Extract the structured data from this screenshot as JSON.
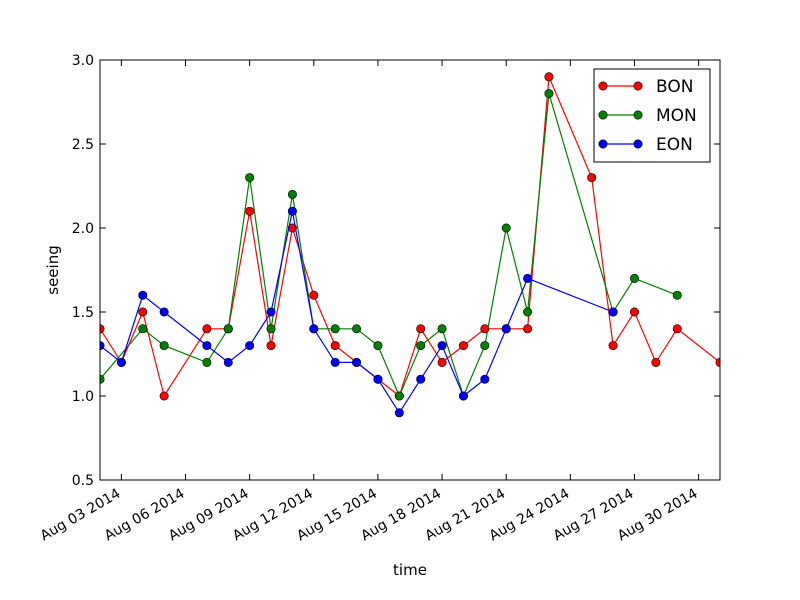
{
  "chart_data": {
    "type": "line",
    "xlabel": "time",
    "ylabel": "seeing",
    "xlim": [
      "2014-08-02",
      "2014-08-31"
    ],
    "ylim": [
      0.5,
      3.0
    ],
    "yticks": [
      0.5,
      1.0,
      1.5,
      2.0,
      2.5,
      3.0
    ],
    "ytick_labels": [
      "0.5",
      "1.0",
      "1.5",
      "2.0",
      "2.5",
      "3.0"
    ],
    "xticks": [
      "2014-08-03",
      "2014-08-06",
      "2014-08-09",
      "2014-08-12",
      "2014-08-15",
      "2014-08-18",
      "2014-08-21",
      "2014-08-24",
      "2014-08-27",
      "2014-08-30"
    ],
    "xtick_labels": [
      "Aug 03 2014",
      "Aug 06 2014",
      "Aug 09 2014",
      "Aug 12 2014",
      "Aug 15 2014",
      "Aug 18 2014",
      "Aug 21 2014",
      "Aug 24 2014",
      "Aug 27 2014",
      "Aug 30 2014"
    ],
    "grid": false,
    "legend_position": "top-right",
    "series": [
      {
        "name": "BON",
        "color": "#ff0000",
        "x": [
          "2014-08-02",
          "2014-08-03",
          "2014-08-04",
          "2014-08-05",
          "2014-08-07",
          "2014-08-08",
          "2014-08-09",
          "2014-08-10",
          "2014-08-11",
          "2014-08-12",
          "2014-08-13",
          "2014-08-14",
          "2014-08-15",
          "2014-08-16",
          "2014-08-17",
          "2014-08-18",
          "2014-08-19",
          "2014-08-20",
          "2014-08-21",
          "2014-08-22",
          "2014-08-23",
          "2014-08-25",
          "2014-08-26",
          "2014-08-27",
          "2014-08-28",
          "2014-08-29",
          "2014-08-31"
        ],
        "y": [
          1.4,
          1.2,
          1.5,
          1.0,
          1.4,
          1.4,
          2.1,
          1.3,
          2.0,
          1.6,
          1.3,
          1.2,
          1.1,
          1.0,
          1.4,
          1.2,
          1.3,
          1.4,
          1.4,
          1.4,
          2.9,
          2.3,
          1.3,
          1.5,
          1.2,
          1.4,
          1.2
        ]
      },
      {
        "name": "MON",
        "color": "#008000",
        "x": [
          "2014-08-02",
          "2014-08-04",
          "2014-08-05",
          "2014-08-07",
          "2014-08-08",
          "2014-08-09",
          "2014-08-10",
          "2014-08-11",
          "2014-08-12",
          "2014-08-13",
          "2014-08-14",
          "2014-08-15",
          "2014-08-16",
          "2014-08-17",
          "2014-08-18",
          "2014-08-19",
          "2014-08-20",
          "2014-08-21",
          "2014-08-22",
          "2014-08-23",
          "2014-08-26",
          "2014-08-27",
          "2014-08-29"
        ],
        "y": [
          1.1,
          1.4,
          1.3,
          1.2,
          1.4,
          2.3,
          1.4,
          2.2,
          1.4,
          1.4,
          1.4,
          1.3,
          1.0,
          1.3,
          1.4,
          1.0,
          1.3,
          2.0,
          1.5,
          2.8,
          1.5,
          1.7,
          1.6
        ]
      },
      {
        "name": "EON",
        "color": "#0000ff",
        "x": [
          "2014-08-02",
          "2014-08-03",
          "2014-08-04",
          "2014-08-05",
          "2014-08-07",
          "2014-08-08",
          "2014-08-09",
          "2014-08-10",
          "2014-08-11",
          "2014-08-12",
          "2014-08-13",
          "2014-08-14",
          "2014-08-15",
          "2014-08-16",
          "2014-08-17",
          "2014-08-18",
          "2014-08-19",
          "2014-08-20",
          "2014-08-21",
          "2014-08-22",
          "2014-08-26"
        ],
        "y": [
          1.3,
          1.2,
          1.6,
          1.5,
          1.3,
          1.2,
          1.3,
          1.5,
          2.1,
          1.4,
          1.2,
          1.2,
          1.1,
          0.9,
          1.1,
          1.3,
          1.0,
          1.1,
          1.4,
          1.7,
          1.5
        ]
      }
    ]
  }
}
